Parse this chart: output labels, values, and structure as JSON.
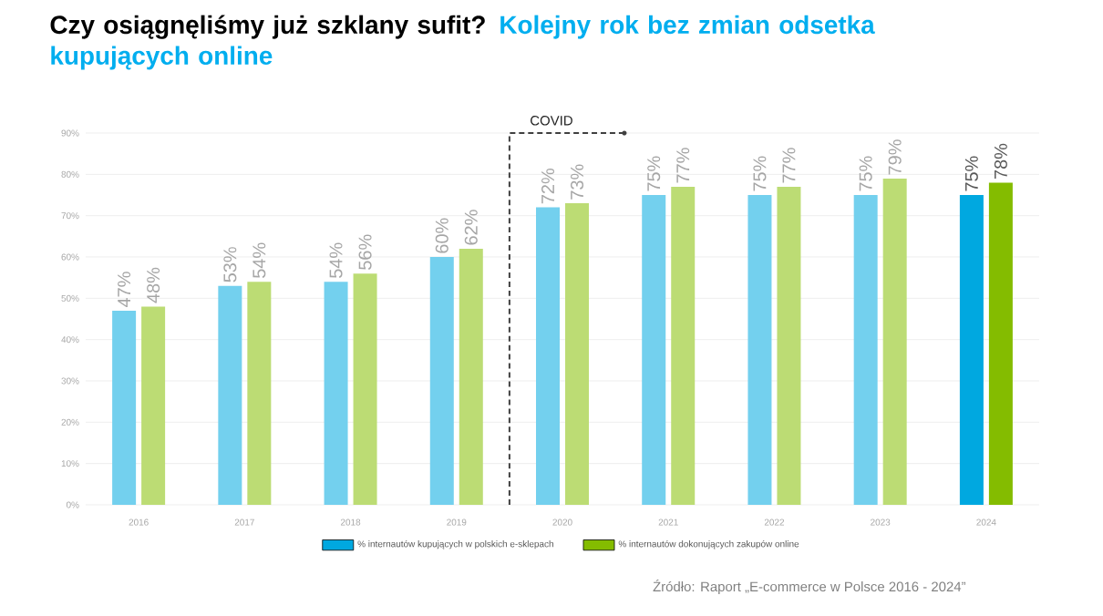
{
  "chart_data": {
    "type": "bar",
    "title": "Czy osiągnęliśmy już szklany sufit?",
    "subtitle": "Kolejny rok bez zmian odsetka kupujących online",
    "categories": [
      "2016",
      "2017",
      "2018",
      "2019",
      "2020",
      "2021",
      "2022",
      "2023",
      "2024"
    ],
    "series": [
      {
        "name": "% internautów kupujących w polskich e-sklepach",
        "color": "#00a8e0",
        "colors": [
          "#73d0ee",
          "#73d0ee",
          "#73d0ee",
          "#73d0ee",
          "#73d0ee",
          "#73d0ee",
          "#73d0ee",
          "#73d0ee",
          "#00a8e0"
        ],
        "values": [
          47,
          53,
          54,
          60,
          72,
          75,
          75,
          75,
          75
        ],
        "value_labels": [
          "47%",
          "53%",
          "54%",
          "60%",
          "72%",
          "75%",
          "75%",
          "75%",
          "75%"
        ]
      },
      {
        "name": "% internautów dokonujących zakupów online",
        "color": "#84bc00",
        "colors": [
          "#bcdc74",
          "#bcdc74",
          "#bcdc74",
          "#bcdc74",
          "#bcdc74",
          "#bcdc74",
          "#bcdc74",
          "#bcdc74",
          "#84bc00"
        ],
        "values": [
          48,
          54,
          56,
          62,
          73,
          77,
          77,
          79,
          78
        ],
        "value_labels": [
          "48%",
          "54%",
          "56%",
          "62%",
          "73%",
          "77%",
          "77%",
          "79%",
          "78%"
        ]
      }
    ],
    "ylim": [
      0,
      90
    ],
    "yticks": [
      {
        "value": 0,
        "label": "0%"
      },
      {
        "value": 10,
        "label": "10%"
      },
      {
        "value": 20,
        "label": "20%"
      },
      {
        "value": 30,
        "label": "30%"
      },
      {
        "value": 40,
        "label": "40%"
      },
      {
        "value": 50,
        "label": "50%"
      },
      {
        "value": 60,
        "label": "60%"
      },
      {
        "value": 70,
        "label": "70%"
      },
      {
        "value": 80,
        "label": "80%"
      },
      {
        "value": 90,
        "label": "90%"
      }
    ],
    "grid": "y",
    "legend": "bottom",
    "ref_lines": [
      {
        "axis": "x",
        "value": "2020",
        "label": "COVID",
        "line_style": "dashed",
        "color": "#404040"
      }
    ],
    "annotations": [
      "Źródło: Raport „E-commerce w Polsce 2016 - 2024”"
    ]
  }
}
